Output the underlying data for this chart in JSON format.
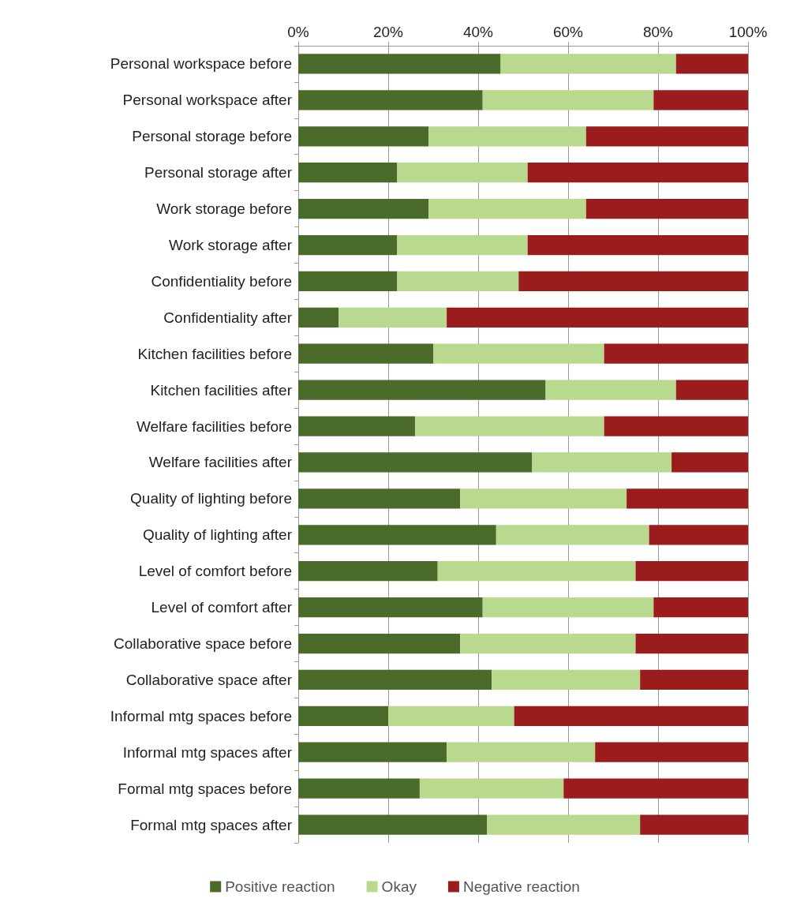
{
  "chart_data": {
    "type": "bar",
    "orientation": "horizontal",
    "stacked": true,
    "categories": [
      "Personal workspace before",
      "Personal workspace after",
      "Personal storage before",
      "Personal storage after",
      "Work storage before",
      "Work storage after",
      "Confidentiality before",
      "Confidentiality after",
      "Kitchen facilities before",
      "Kitchen facilities after",
      "Welfare facilities before",
      "Welfare facilities after",
      "Quality of lighting before",
      "Quality of lighting after",
      "Level of comfort before",
      "Level of comfort after",
      "Collaborative space before",
      "Collaborative space after",
      "Informal mtg spaces before",
      "Informal mtg spaces after",
      "Formal mtg spaces before",
      "Formal mtg spaces after"
    ],
    "series": [
      {
        "name": "Positive reaction",
        "color": "#4b6b2a",
        "values": [
          45,
          41,
          29,
          22,
          29,
          22,
          22,
          9,
          30,
          55,
          26,
          52,
          36,
          44,
          31,
          41,
          36,
          43,
          20,
          33,
          27,
          42
        ]
      },
      {
        "name": "Okay",
        "color": "#b8d98e",
        "values": [
          39,
          38,
          35,
          29,
          35,
          29,
          27,
          24,
          38,
          29,
          42,
          31,
          37,
          34,
          44,
          38,
          39,
          33,
          28,
          33,
          32,
          34
        ]
      },
      {
        "name": "Negative reaction",
        "color": "#9b1c1c",
        "values": [
          16,
          21,
          36,
          49,
          36,
          49,
          51,
          67,
          32,
          16,
          32,
          17,
          27,
          22,
          25,
          21,
          25,
          24,
          52,
          34,
          41,
          24
        ]
      }
    ],
    "xlim": [
      0,
      100
    ],
    "xticks": [
      {
        "value": 0,
        "label": "0%"
      },
      {
        "value": 20,
        "label": "20%"
      },
      {
        "value": 40,
        "label": "40%"
      },
      {
        "value": 60,
        "label": "60%"
      },
      {
        "value": 80,
        "label": "80%"
      },
      {
        "value": 100,
        "label": "100%"
      }
    ],
    "grid": "x",
    "legend": "bottom"
  }
}
